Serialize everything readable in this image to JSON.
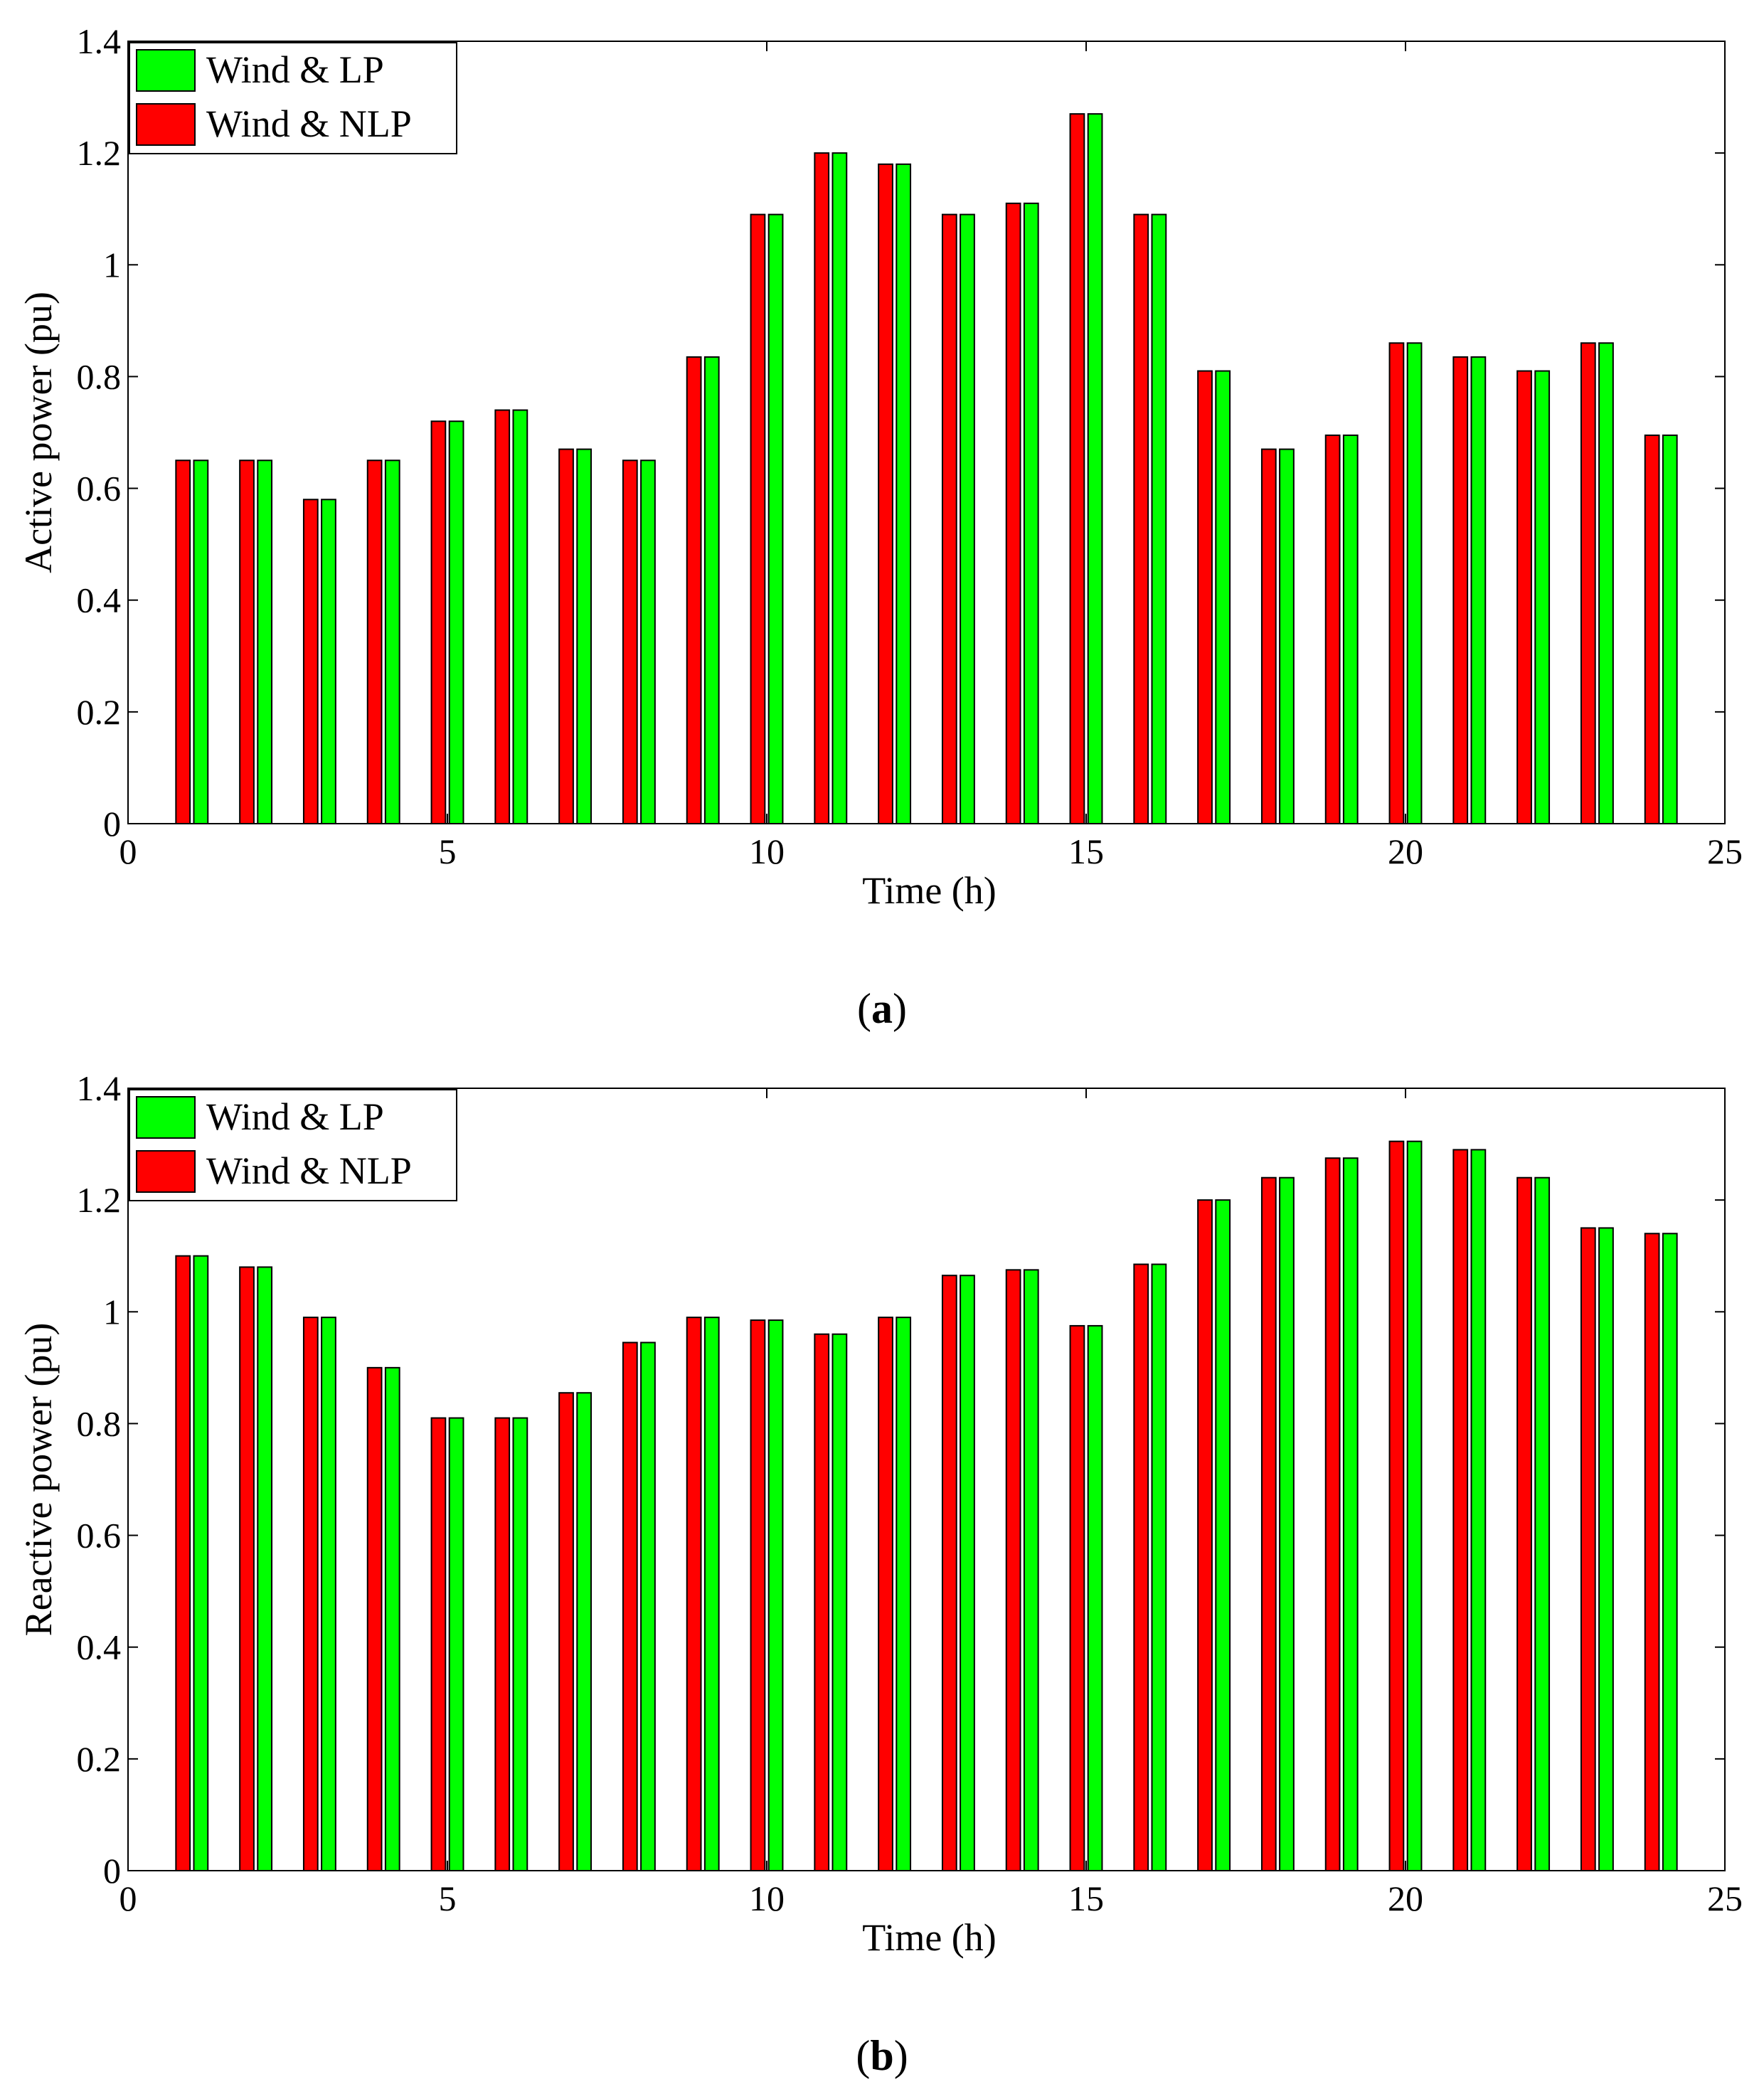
{
  "chart_data": [
    {
      "type": "bar",
      "panel": "a",
      "caption_open": "(",
      "caption_letter": "a",
      "caption_close": ")",
      "xlabel": "Time (h)",
      "ylabel": "Active power (pu)",
      "xlim": [
        0,
        25
      ],
      "ylim": [
        0,
        1.4
      ],
      "xticks": [
        "0",
        "5",
        "10",
        "15",
        "20",
        "25"
      ],
      "yticks": [
        "0",
        "0.2",
        "0.4",
        "0.6",
        "0.8",
        "1",
        "1.2",
        "1.4"
      ],
      "legend_position": "top-left",
      "categories": [
        1,
        2,
        3,
        4,
        5,
        6,
        7,
        8,
        9,
        10,
        11,
        12,
        13,
        14,
        15,
        16,
        17,
        18,
        19,
        20,
        21,
        22,
        23,
        24
      ],
      "series": [
        {
          "name": "Wind & LP",
          "color": "#00ff00",
          "values": [
            0.65,
            0.65,
            0.58,
            0.65,
            0.72,
            0.74,
            0.67,
            0.65,
            0.835,
            1.09,
            1.2,
            1.18,
            1.09,
            1.11,
            1.27,
            1.09,
            0.81,
            0.67,
            0.695,
            0.86,
            0.835,
            0.81,
            0.86,
            0.695
          ]
        },
        {
          "name": "Wind & NLP",
          "color": "#ff0000",
          "values": [
            0.65,
            0.65,
            0.58,
            0.65,
            0.72,
            0.74,
            0.67,
            0.65,
            0.835,
            1.09,
            1.2,
            1.18,
            1.09,
            1.11,
            1.27,
            1.09,
            0.81,
            0.67,
            0.695,
            0.86,
            0.835,
            0.81,
            0.86,
            0.695
          ]
        }
      ]
    },
    {
      "type": "bar",
      "panel": "b",
      "caption_open": "(",
      "caption_letter": "b",
      "caption_close": ")",
      "xlabel": "Time (h)",
      "ylabel": "Reactive power (pu)",
      "xlim": [
        0,
        25
      ],
      "ylim": [
        0,
        1.4
      ],
      "xticks": [
        "0",
        "5",
        "10",
        "15",
        "20",
        "25"
      ],
      "yticks": [
        "0",
        "0.2",
        "0.4",
        "0.6",
        "0.8",
        "1",
        "1.2",
        "1.4"
      ],
      "legend_position": "top-left",
      "categories": [
        1,
        2,
        3,
        4,
        5,
        6,
        7,
        8,
        9,
        10,
        11,
        12,
        13,
        14,
        15,
        16,
        17,
        18,
        19,
        20,
        21,
        22,
        23,
        24
      ],
      "series": [
        {
          "name": "Wind & LP",
          "color": "#00ff00",
          "values": [
            1.1,
            1.08,
            0.99,
            0.9,
            0.81,
            0.81,
            0.855,
            0.945,
            0.99,
            0.985,
            0.96,
            0.99,
            1.065,
            1.075,
            0.975,
            1.085,
            1.2,
            1.24,
            1.275,
            1.305,
            1.29,
            1.24,
            1.15,
            1.14
          ]
        },
        {
          "name": "Wind & NLP",
          "color": "#ff0000",
          "values": [
            1.1,
            1.08,
            0.99,
            0.9,
            0.81,
            0.81,
            0.855,
            0.945,
            0.99,
            0.985,
            0.96,
            0.99,
            1.065,
            1.075,
            0.975,
            1.085,
            1.2,
            1.24,
            1.275,
            1.305,
            1.29,
            1.24,
            1.15,
            1.14
          ]
        }
      ]
    }
  ]
}
